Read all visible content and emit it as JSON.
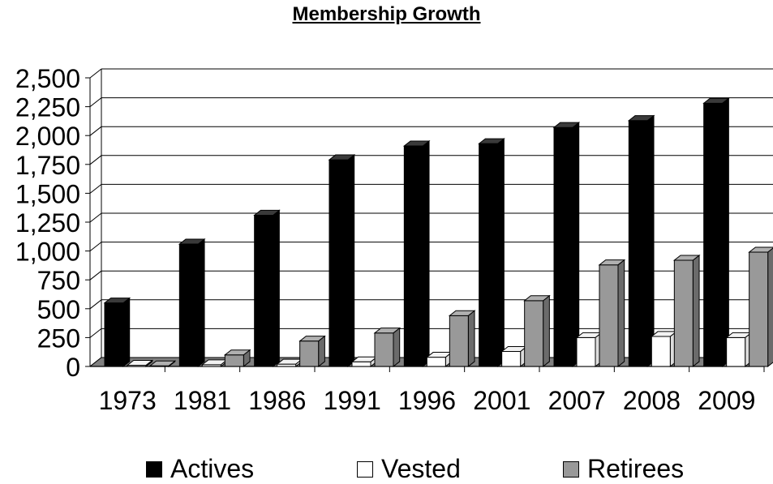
{
  "chart_data": {
    "type": "bar",
    "title": "Membership Growth",
    "xlabel": "",
    "ylabel": "",
    "categories": [
      "1973",
      "1981",
      "1986",
      "1991",
      "1996",
      "2001",
      "2007",
      "2008",
      "2009"
    ],
    "series": [
      {
        "name": "Actives",
        "color": "#000000",
        "values": [
          550,
          1060,
          1310,
          1790,
          1910,
          1930,
          2070,
          2130,
          2280
        ]
      },
      {
        "name": "Vested",
        "color": "#ffffff",
        "values": [
          10,
          15,
          20,
          40,
          80,
          130,
          250,
          260,
          250
        ]
      },
      {
        "name": "Retirees",
        "color": "#999999",
        "values": [
          5,
          100,
          220,
          290,
          440,
          570,
          880,
          920,
          990
        ]
      }
    ],
    "yticks": [
      "0",
      "250",
      "500",
      "750",
      "1,000",
      "1,250",
      "1,500",
      "1,750",
      "2,000",
      "2,250",
      "2,500"
    ],
    "ylim": [
      0,
      2500
    ],
    "grid": true,
    "legend_position": "bottom"
  }
}
